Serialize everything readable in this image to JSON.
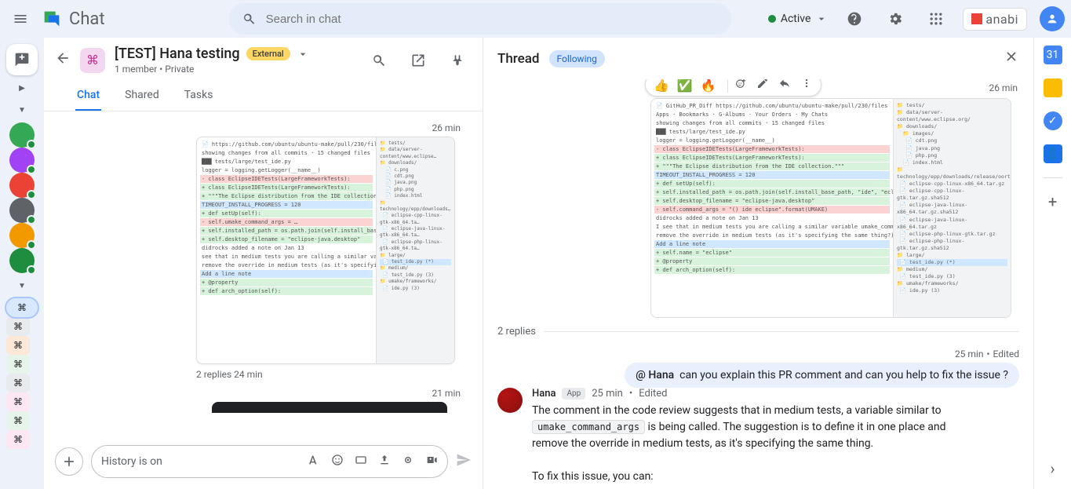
{
  "topbar": {
    "search_placeholder": "Search in chat",
    "status": "Active",
    "brand": "anabi"
  },
  "logo": {
    "text": "Chat"
  },
  "rail": {
    "dm_colors": [
      "#34a853",
      "#a142f4",
      "#ea4335",
      "#5f6368",
      "#f29900",
      "#1e8e3e"
    ],
    "space_colors": [
      {
        "bg": "#d8e8ff",
        "selected": true
      },
      {
        "bg": "#e8eaed",
        "selected": false
      },
      {
        "bg": "#fce8d6",
        "selected": false
      },
      {
        "bg": "#e6f4ea",
        "selected": false
      },
      {
        "bg": "#e8eaed",
        "selected": false
      },
      {
        "bg": "#fde7f3",
        "selected": false
      },
      {
        "bg": "#e6f4ea",
        "selected": false
      },
      {
        "bg": "#fde7f3",
        "selected": false
      }
    ]
  },
  "chat": {
    "title": "[TEST] Hana testing",
    "external": "External",
    "sub": "1 member  •  Private",
    "tabs": [
      "Chat",
      "Shared",
      "Tasks"
    ],
    "active_tab": 0,
    "msg1_time": "26 min",
    "msg1_replies": "2 replies  24 min",
    "msg2_time": "21 min",
    "compose_placeholder": "History is on"
  },
  "thread": {
    "title": "Thread",
    "following": "Following",
    "top_time": "26 min",
    "reactions": [
      "👍",
      "✅",
      "🔥"
    ],
    "replies_label": "2 replies",
    "user_meta_time": "25 min",
    "user_meta_edited": "Edited",
    "user_mention": "@ Hana",
    "user_text": "can you explain this PR comment and can you help to fix the issue ?",
    "bot_name": "Hana",
    "bot_app": "App",
    "bot_time": "25 min",
    "bot_edited": "Edited",
    "bot_text_1": "The comment in the code review suggests that in medium tests, a variable similar to ",
    "bot_code": "umake_command_args",
    "bot_text_2": " is being called. The suggestion is to define it in one place and remove the override in medium tests, as it's specifying the same thing.",
    "bot_text_3": "To fix this issue, you can:"
  },
  "side": {
    "items": [
      "📅",
      "💡",
      "✓",
      "👤"
    ]
  }
}
